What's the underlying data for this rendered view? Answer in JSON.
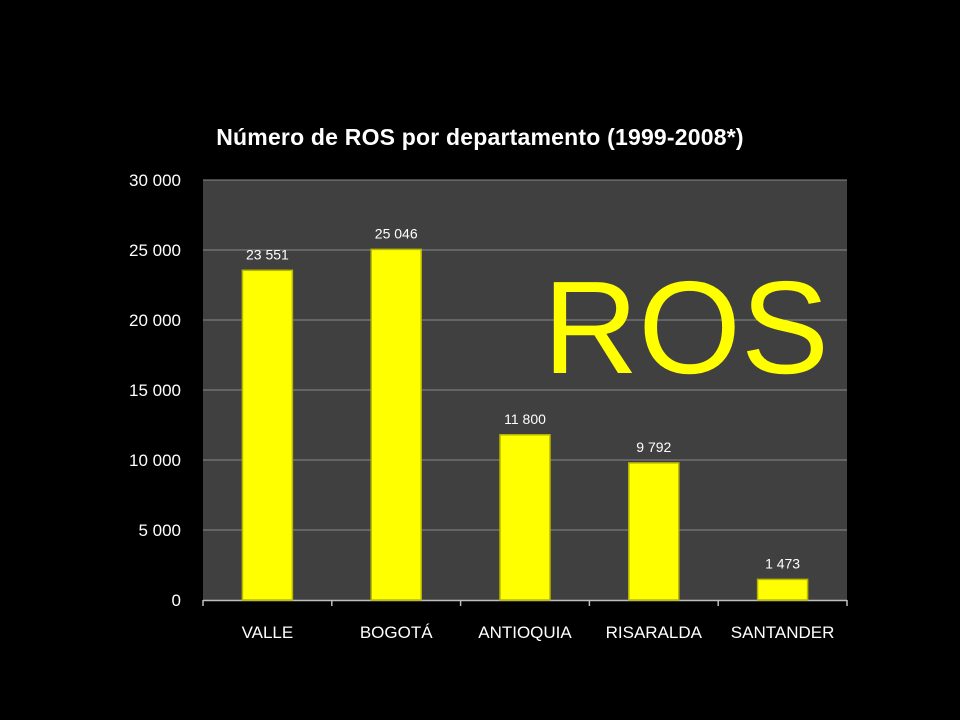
{
  "chart_data": {
    "type": "bar",
    "title": "Número de ROS por departamento (1999-2008*)",
    "annotation": "ROS",
    "categories": [
      "VALLE",
      "BOGOTÁ",
      "ANTIOQUIA",
      "RISARALDA",
      "SANTANDER"
    ],
    "values": [
      23551,
      25046,
      11800,
      9792,
      1473
    ],
    "value_labels": [
      "23 551",
      "25 046",
      "11 800",
      "9 792",
      "1 473"
    ],
    "y_ticks": [
      0,
      5000,
      10000,
      15000,
      20000,
      25000,
      30000
    ],
    "y_tick_labels": [
      "0",
      "5 000",
      "10 000",
      "15 000",
      "20 000",
      "25 000",
      "30 000"
    ],
    "xlabel": "",
    "ylabel": "",
    "ylim": [
      0,
      30000
    ],
    "grid": true,
    "legend": "none"
  },
  "colors": {
    "background": "#000000",
    "plot_area": "#404040",
    "bar": "#ffff00",
    "text": "#ffffff",
    "annotation": "#ffff00"
  }
}
